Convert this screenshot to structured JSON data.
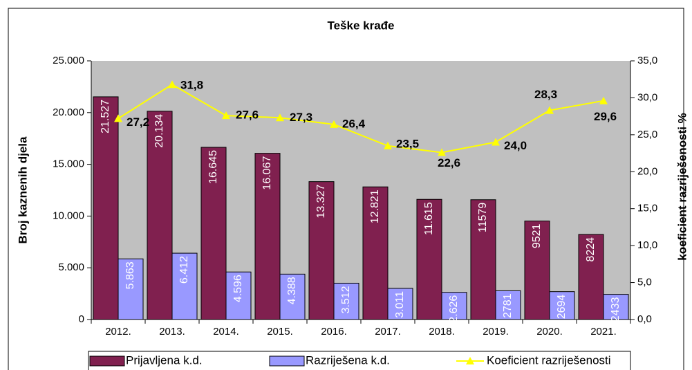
{
  "chart_data": {
    "type": "bar",
    "title": "Teške krađe",
    "y_label": "Broj kaznenih djela",
    "y2_label": "koeficient razriješenosti %",
    "categories": [
      "2012.",
      "2013.",
      "2014.",
      "2015.",
      "2016.",
      "2017.",
      "2018.",
      "2019.",
      "2020.",
      "2021."
    ],
    "series": [
      {
        "name": "Prijavljena k.d.",
        "color": "#80204f",
        "values": [
          21527,
          20134,
          16645,
          16067,
          13327,
          12821,
          11615,
          11579,
          9521,
          8224
        ],
        "value_labels": [
          "21.527",
          "20.134",
          "16.645",
          "16.067",
          "13.327",
          "12.821",
          "11.615",
          "11579",
          "9521",
          "8224"
        ]
      },
      {
        "name": "Razriješena k.d.",
        "color": "#9999ff",
        "values": [
          5863,
          6412,
          4596,
          4388,
          3512,
          3011,
          2626,
          2781,
          2694,
          2433
        ],
        "value_labels": [
          "5.863",
          "6.412",
          "4.596",
          "4.388",
          "3.512",
          "3.011",
          "2.626",
          "2781",
          "2694",
          "2433"
        ]
      },
      {
        "name": "Koeficient razriješenosti",
        "type": "line",
        "axis": "y2",
        "color": "#ffff00",
        "values": [
          27.2,
          31.8,
          27.6,
          27.3,
          26.4,
          23.5,
          22.6,
          24.0,
          28.3,
          29.6
        ],
        "value_labels": [
          "27,2",
          "31,8",
          "27,6",
          "27,3",
          "26,4",
          "23,5",
          "22,6",
          "24,0",
          "28,3",
          "29,6"
        ]
      }
    ],
    "ylim": [
      0,
      25000
    ],
    "yticks": [
      {
        "value": 0,
        "label": "0"
      },
      {
        "value": 5000,
        "label": "5.000"
      },
      {
        "value": 10000,
        "label": "10.000"
      },
      {
        "value": 15000,
        "label": "15.000"
      },
      {
        "value": 20000,
        "label": "20.000"
      },
      {
        "value": 25000,
        "label": "25.000"
      }
    ],
    "y2lim": [
      0,
      35
    ],
    "y2ticks": [
      {
        "value": 0,
        "label": "0,0"
      },
      {
        "value": 5,
        "label": "5,0"
      },
      {
        "value": 10,
        "label": "10,0"
      },
      {
        "value": 15,
        "label": "15,0"
      },
      {
        "value": 20,
        "label": "20,0"
      },
      {
        "value": 25,
        "label": "25,0"
      },
      {
        "value": 30,
        "label": "30,0"
      },
      {
        "value": 35,
        "label": "35,0"
      }
    ],
    "legend": "bottom"
  }
}
